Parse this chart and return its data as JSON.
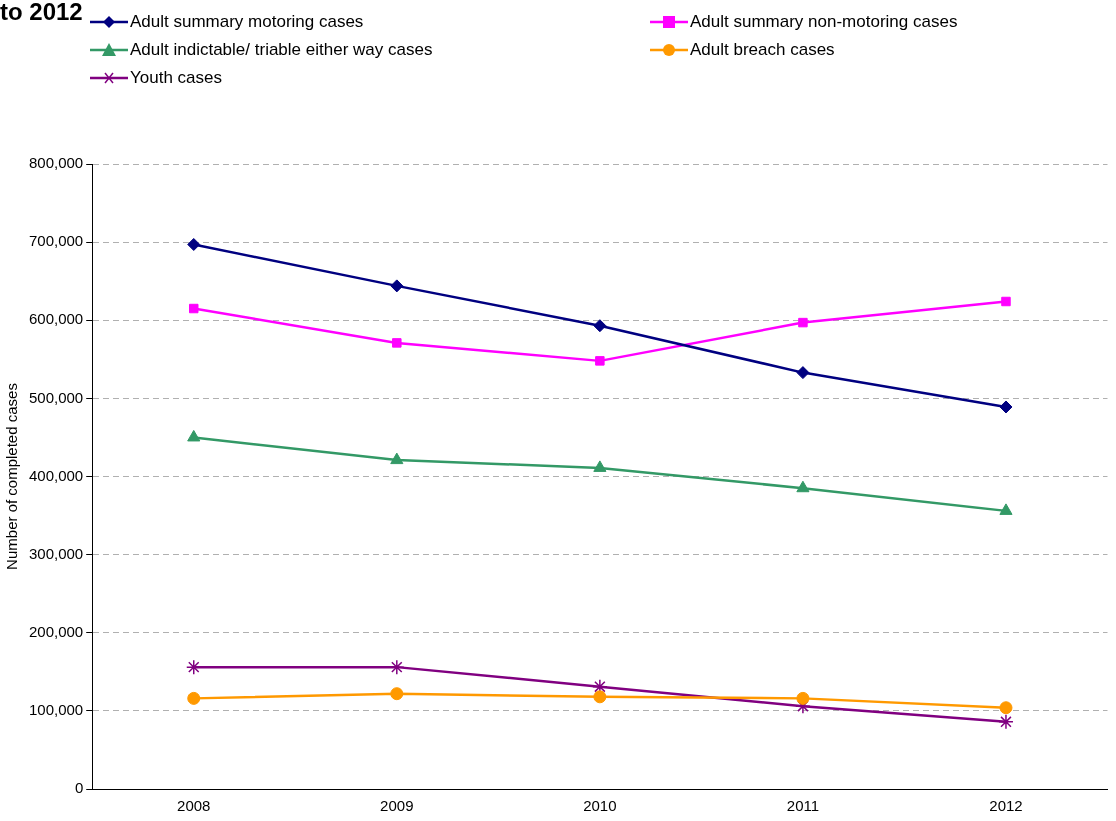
{
  "chart_data": {
    "type": "line",
    "title": "to 2012",
    "ylabel": "Number of completed cases",
    "categories": [
      "2008",
      "2009",
      "2010",
      "2011",
      "2012"
    ],
    "series": [
      {
        "name": "Adult summary motoring cases",
        "color": "#000080",
        "marker": "diamond",
        "values": [
          697000,
          644000,
          593000,
          533000,
          489000
        ]
      },
      {
        "name": "Adult summary non-motoring cases",
        "color": "#ff00ff",
        "marker": "square",
        "values": [
          615000,
          571000,
          548000,
          597000,
          624000
        ]
      },
      {
        "name": "Adult indictable/ triable either way cases",
        "color": "#339966",
        "marker": "triangle",
        "values": [
          450000,
          421000,
          411000,
          385000,
          356000
        ]
      },
      {
        "name": "Adult breach cases",
        "color": "#ff9900",
        "marker": "circle",
        "values": [
          116000,
          122000,
          118000,
          116000,
          104000
        ]
      },
      {
        "name": "Youth cases",
        "color": "#800080",
        "marker": "cross",
        "values": [
          156000,
          156000,
          131000,
          106000,
          86000
        ]
      }
    ],
    "ylim": [
      0,
      800000
    ],
    "yticks": [
      0,
      {
        "value": 100000,
        "label": "100,000"
      },
      {
        "value": 200000,
        "label": "200,000"
      },
      {
        "value": 300000,
        "label": "300,000"
      },
      {
        "value": 400000,
        "label": "400,000"
      },
      {
        "value": 500000,
        "label": "500,000"
      },
      {
        "value": 600000,
        "label": "600,000"
      },
      {
        "value": 700000,
        "label": "700,000"
      },
      {
        "value": 800000,
        "label": "800,000"
      }
    ],
    "grid": "y",
    "legend": "top left",
    "line_style": "solid"
  }
}
